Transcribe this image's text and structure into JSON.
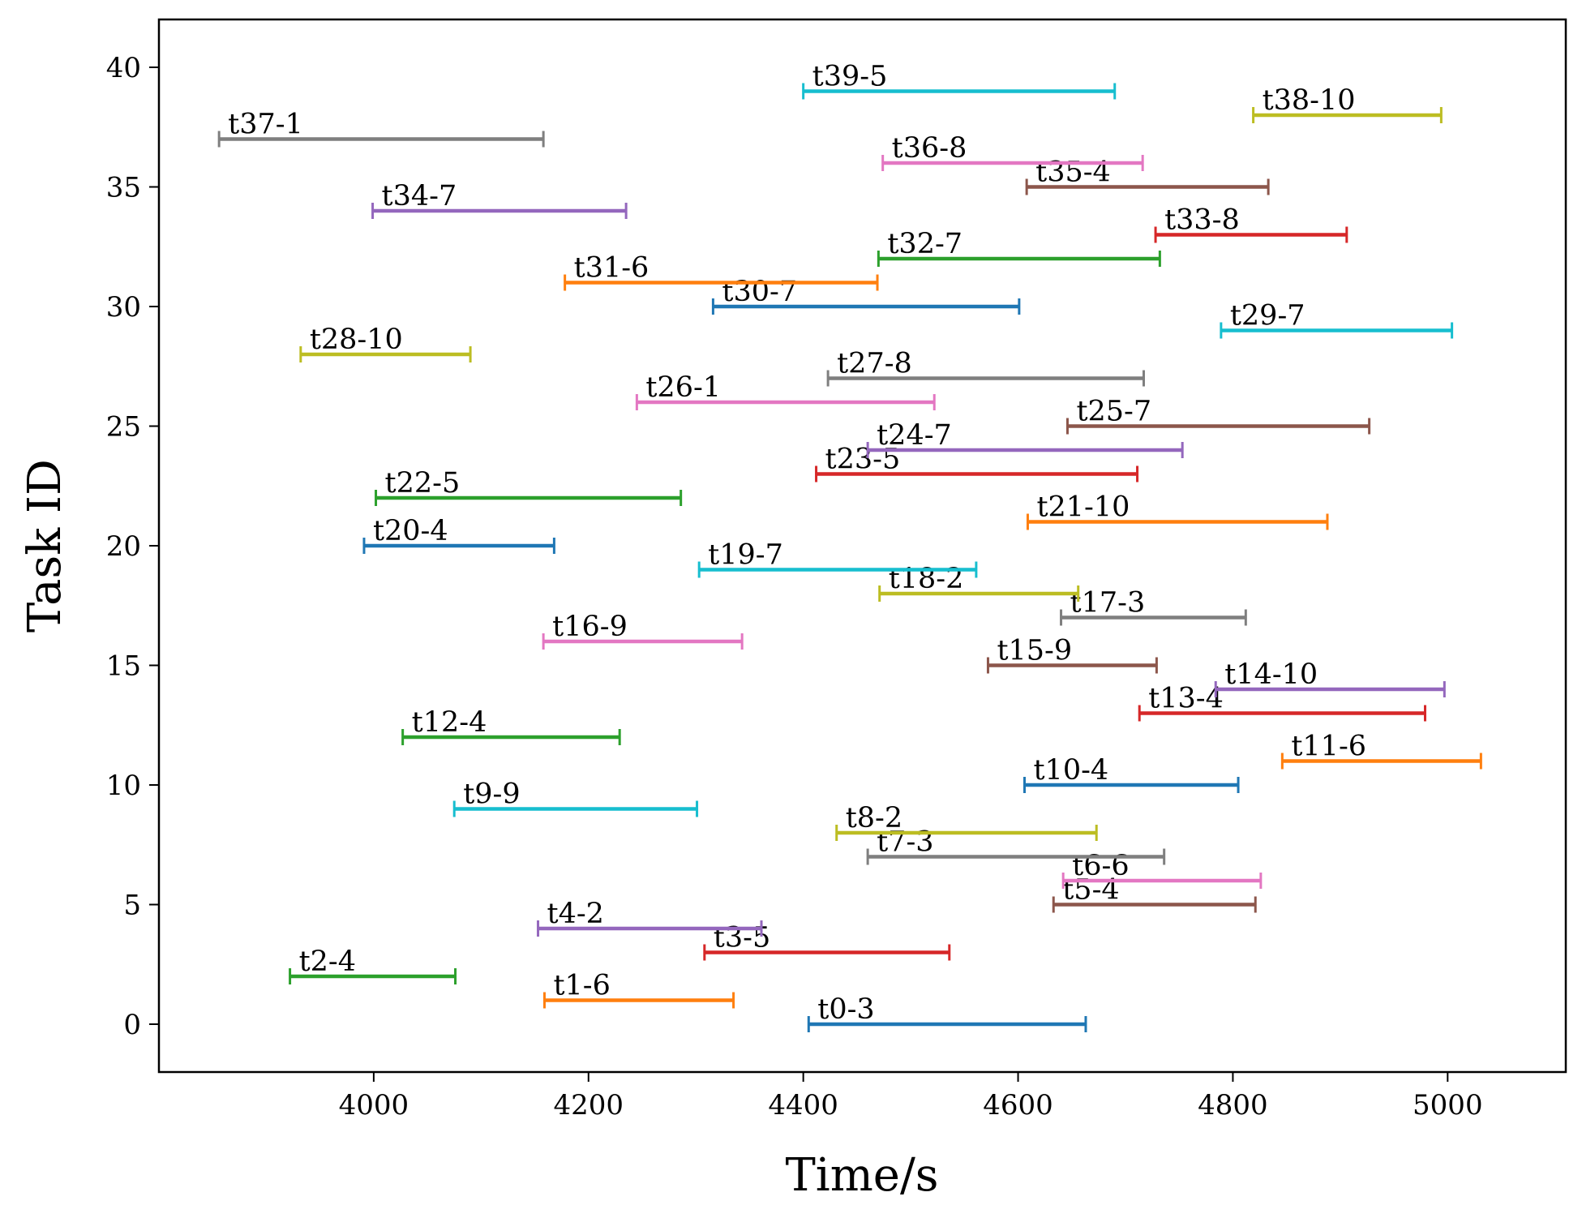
{
  "chart_data": {
    "type": "gantt-interval",
    "title": "",
    "xlabel": "Time/s",
    "ylabel": "Task ID",
    "xlim": [
      3800,
      5110
    ],
    "ylim": [
      -2,
      42
    ],
    "xticks": [
      4000,
      4200,
      4400,
      4600,
      4800,
      5000
    ],
    "yticks": [
      0,
      5,
      10,
      15,
      20,
      25,
      30,
      35,
      40
    ],
    "grid": false,
    "palette": [
      "#1f77b4",
      "#ff7f0e",
      "#2ca02c",
      "#d62728",
      "#9467bd",
      "#8c564b",
      "#e377c2",
      "#7f7f7f",
      "#bcbd22",
      "#17becf"
    ],
    "tasks": [
      {
        "id": 0,
        "label": "t0-3",
        "start": 4405,
        "end": 4663
      },
      {
        "id": 1,
        "label": "t1-6",
        "start": 4159,
        "end": 4335
      },
      {
        "id": 2,
        "label": "t2-4",
        "start": 3922,
        "end": 4076
      },
      {
        "id": 3,
        "label": "t3-5",
        "start": 4308,
        "end": 4536
      },
      {
        "id": 4,
        "label": "t4-2",
        "start": 4153,
        "end": 4361
      },
      {
        "id": 5,
        "label": "t5-4",
        "start": 4633,
        "end": 4821
      },
      {
        "id": 6,
        "label": "t6-6",
        "start": 4642,
        "end": 4826
      },
      {
        "id": 7,
        "label": "t7-3",
        "start": 4460,
        "end": 4736
      },
      {
        "id": 8,
        "label": "t8-2",
        "start": 4431,
        "end": 4673
      },
      {
        "id": 9,
        "label": "t9-9",
        "start": 4075,
        "end": 4301
      },
      {
        "id": 10,
        "label": "t10-4",
        "start": 4606,
        "end": 4805
      },
      {
        "id": 11,
        "label": "t11-6",
        "start": 4846,
        "end": 5031
      },
      {
        "id": 12,
        "label": "t12-4",
        "start": 4027,
        "end": 4229
      },
      {
        "id": 13,
        "label": "t13-4",
        "start": 4713,
        "end": 4979
      },
      {
        "id": 14,
        "label": "t14-10",
        "start": 4784,
        "end": 4997
      },
      {
        "id": 15,
        "label": "t15-9",
        "start": 4572,
        "end": 4729
      },
      {
        "id": 16,
        "label": "t16-9",
        "start": 4158,
        "end": 4343
      },
      {
        "id": 17,
        "label": "t17-3",
        "start": 4640,
        "end": 4812
      },
      {
        "id": 18,
        "label": "t18-2",
        "start": 4471,
        "end": 4656
      },
      {
        "id": 19,
        "label": "t19-7",
        "start": 4303,
        "end": 4561
      },
      {
        "id": 20,
        "label": "t20-4",
        "start": 3991,
        "end": 4168
      },
      {
        "id": 21,
        "label": "t21-10",
        "start": 4609,
        "end": 4888
      },
      {
        "id": 22,
        "label": "t22-5",
        "start": 4002,
        "end": 4286
      },
      {
        "id": 23,
        "label": "t23-5",
        "start": 4412,
        "end": 4711
      },
      {
        "id": 24,
        "label": "t24-7",
        "start": 4460,
        "end": 4753
      },
      {
        "id": 25,
        "label": "t25-7",
        "start": 4646,
        "end": 4927
      },
      {
        "id": 26,
        "label": "t26-1",
        "start": 4245,
        "end": 4522
      },
      {
        "id": 27,
        "label": "t27-8",
        "start": 4423,
        "end": 4717
      },
      {
        "id": 28,
        "label": "t28-10",
        "start": 3932,
        "end": 4090
      },
      {
        "id": 29,
        "label": "t29-7",
        "start": 4789,
        "end": 5004
      },
      {
        "id": 30,
        "label": "t30-7",
        "start": 4316,
        "end": 4601
      },
      {
        "id": 31,
        "label": "t31-6",
        "start": 4178,
        "end": 4469
      },
      {
        "id": 32,
        "label": "t32-7",
        "start": 4470,
        "end": 4732
      },
      {
        "id": 33,
        "label": "t33-8",
        "start": 4728,
        "end": 4906
      },
      {
        "id": 34,
        "label": "t34-7",
        "start": 3999,
        "end": 4235
      },
      {
        "id": 35,
        "label": "t35-4",
        "start": 4608,
        "end": 4833
      },
      {
        "id": 36,
        "label": "t36-8",
        "start": 4474,
        "end": 4716
      },
      {
        "id": 37,
        "label": "t37-1",
        "start": 3856,
        "end": 4158
      },
      {
        "id": 38,
        "label": "t38-10",
        "start": 4819,
        "end": 4994
      },
      {
        "id": 39,
        "label": "t39-5",
        "start": 4400,
        "end": 4690
      }
    ]
  }
}
